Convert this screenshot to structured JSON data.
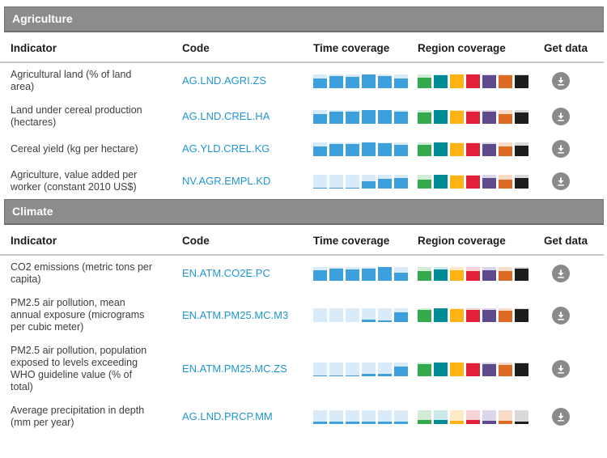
{
  "palette": {
    "section_header_bg": "#8c8c8c",
    "section_header_border": "#747474",
    "section_header_text": "#ffffff",
    "column_header_text": "#1c1c1c",
    "indicator_text": "#3d3d3d",
    "code_link": "#2196d3",
    "header_rule": "#c9c9c9",
    "download_button_bg": "#8a8a8a",
    "download_icon_color": "#ffffff"
  },
  "columns": [
    "Indicator",
    "Code",
    "Time coverage",
    "Region coverage",
    "Get data"
  ],
  "time_color": {
    "solid": "#3da0dc",
    "light": "#d9ebf8"
  },
  "regions": [
    {
      "name": "green",
      "solid": "#34a94d",
      "light": "#d3ecd8"
    },
    {
      "name": "teal",
      "solid": "#008c94",
      "light": "#cce8ea"
    },
    {
      "name": "amber",
      "solid": "#fcb415",
      "light": "#fdeac6"
    },
    {
      "name": "red",
      "solid": "#e2203a",
      "light": "#f8d3d8"
    },
    {
      "name": "purple",
      "solid": "#5e4b8b",
      "light": "#dcd7e8"
    },
    {
      "name": "orange",
      "solid": "#dd6b23",
      "light": "#f8dcc8"
    },
    {
      "name": "black",
      "solid": "#1d1d1d",
      "light": "#d9d9d9"
    }
  ],
  "get_data_icon": "download-icon",
  "sections": [
    {
      "title": "Agriculture",
      "rows": [
        {
          "indicator": "Agricultural land (% of land area)",
          "code": "AG.LND.AGRI.ZS",
          "time_coverage": [
            70,
            85,
            80,
            100,
            88,
            65
          ],
          "region_coverage": [
            75,
            92,
            95,
            95,
            90,
            92,
            92
          ]
        },
        {
          "indicator": "Land under cereal production (hectares)",
          "code": "AG.LND.CREL.HA",
          "time_coverage": [
            65,
            85,
            85,
            100,
            95,
            88
          ],
          "region_coverage": [
            80,
            95,
            92,
            88,
            88,
            70,
            80
          ]
        },
        {
          "indicator": "Cereal yield (kg per hectare)",
          "code": "AG.YLD.CREL.KG",
          "time_coverage": [
            70,
            85,
            85,
            95,
            92,
            80
          ],
          "region_coverage": [
            80,
            95,
            92,
            90,
            85,
            65,
            75
          ]
        },
        {
          "indicator": "Agriculture, value added per worker (constant 2010 US$)",
          "code": "NV.AGR.EMPL.KD",
          "time_coverage": [
            3,
            3,
            3,
            50,
            70,
            72
          ],
          "region_coverage": [
            60,
            100,
            92,
            90,
            72,
            62,
            75
          ]
        }
      ]
    },
    {
      "title": "Climate",
      "rows": [
        {
          "indicator": "CO2 emissions (metric tons per capita)",
          "code": "EN.ATM.CO2E.PC",
          "time_coverage": [
            75,
            85,
            80,
            85,
            100,
            55
          ],
          "region_coverage": [
            68,
            78,
            75,
            70,
            73,
            68,
            85
          ]
        },
        {
          "indicator": "PM2.5 air pollution, mean annual exposure (micrograms per cubic meter)",
          "code": "EN.ATM.PM25.MC.M3",
          "time_coverage": [
            3,
            3,
            3,
            15,
            12,
            70
          ],
          "region_coverage": [
            88,
            100,
            97,
            90,
            86,
            84,
            94
          ]
        },
        {
          "indicator": "PM2.5 air pollution, population exposed to levels exceeding WHO guideline value (% of total)",
          "code": "EN.ATM.PM25.MC.ZS",
          "time_coverage": [
            3,
            3,
            3,
            15,
            12,
            65
          ],
          "region_coverage": [
            88,
            100,
            97,
            92,
            86,
            82,
            94
          ]
        },
        {
          "indicator": "Average precipitation in depth (mm per year)",
          "code": "AG.LND.PRCP.MM",
          "time_coverage": [
            15,
            15,
            15,
            15,
            13,
            15
          ],
          "region_coverage": [
            25,
            25,
            20,
            24,
            18,
            20,
            12
          ]
        }
      ]
    }
  ]
}
